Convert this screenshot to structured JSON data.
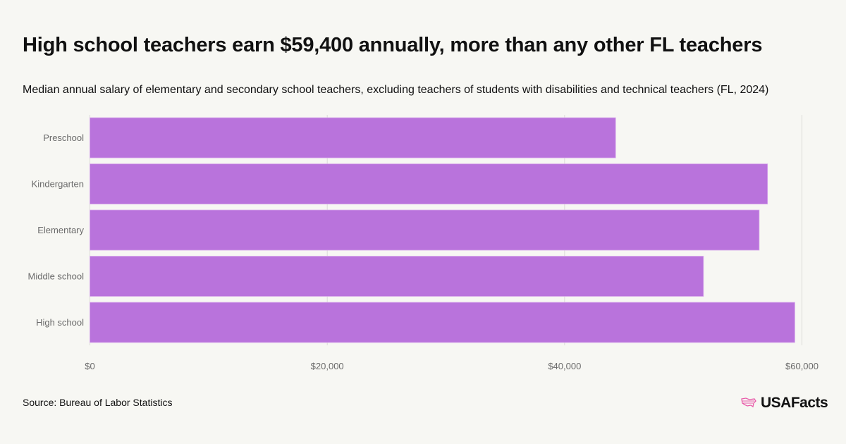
{
  "chart_data": {
    "type": "bar",
    "orientation": "horizontal",
    "title": "High school teachers earn $59,400 annually, more than any other FL teachers",
    "subtitle": "Median annual salary of elementary and secondary school teachers, excluding teachers of students with disabilities and technical teachers (FL, 2024)",
    "categories": [
      "Preschool",
      "Kindergarten",
      "Elementary",
      "Middle school",
      "High school"
    ],
    "values": [
      44300,
      57100,
      56400,
      51700,
      59400
    ],
    "xlim": [
      0,
      60000
    ],
    "xticks": [
      0,
      20000,
      40000,
      60000
    ],
    "xtick_labels": [
      "$0",
      "$20,000",
      "$40,000",
      "$60,000"
    ],
    "xlabel": "",
    "ylabel": "",
    "grid": true,
    "bar_color": "#b973dc"
  },
  "footer": {
    "source": "Source: Bureau of Labor Statistics",
    "logo": "USAFacts",
    "logo_color": "#e85aa8"
  }
}
